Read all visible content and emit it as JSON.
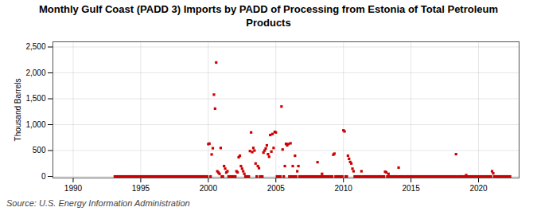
{
  "chart_data": {
    "type": "scatter",
    "title": "Monthly Gulf Coast (PADD 3) Imports by PADD of Processing from Estonia of Total Petroleum\nProducts",
    "ylabel": "Thousand Barrels",
    "caption": "Source: U.S. Energy Information Administration",
    "color": "#cc0000",
    "marker": "square",
    "grid": true,
    "xlim": [
      1988.5,
      2023.0
    ],
    "xticks": [
      1990,
      1995,
      2000,
      2005,
      2010,
      2015,
      2020
    ],
    "ylim": [
      -30,
      2600
    ],
    "yticks": [
      0,
      500,
      {
        "value": 1000,
        "label": "1,000"
      },
      {
        "value": 1500,
        "label": "1,500"
      },
      {
        "value": 2000,
        "label": "2,000"
      },
      {
        "value": 2500,
        "label": "2,500"
      }
    ],
    "x": [
      1993.083,
      1993.167,
      1993.25,
      1993.333,
      1993.417,
      1993.5,
      1993.583,
      1993.667,
      1993.75,
      1993.833,
      1993.917,
      1994.0,
      1994.083,
      1994.167,
      1994.25,
      1994.333,
      1994.417,
      1994.5,
      1994.583,
      1994.667,
      1994.75,
      1994.833,
      1994.917,
      1995.0,
      1995.083,
      1995.167,
      1995.25,
      1995.333,
      1995.417,
      1995.5,
      1995.583,
      1995.667,
      1995.75,
      1995.833,
      1995.917,
      1996.0,
      1996.083,
      1996.167,
      1996.25,
      1996.333,
      1996.417,
      1996.5,
      1996.583,
      1996.667,
      1996.75,
      1996.833,
      1996.917,
      1997.0,
      1997.083,
      1997.167,
      1997.25,
      1997.333,
      1997.417,
      1997.5,
      1997.583,
      1997.667,
      1997.75,
      1997.833,
      1997.917,
      1998.0,
      1998.083,
      1998.167,
      1998.25,
      1998.333,
      1998.417,
      1998.5,
      1998.583,
      1998.667,
      1998.75,
      1998.833,
      1998.917,
      1999.0,
      1999.083,
      1999.167,
      1999.25,
      1999.333,
      1999.417,
      1999.5,
      1999.583,
      1999.667,
      1999.75,
      1999.833,
      1999.917,
      2000.0,
      2000.083,
      2000.167,
      2000.25,
      2000.333,
      2000.417,
      2000.5,
      2000.583,
      2000.667,
      2000.75,
      2000.833,
      2000.917,
      2001.0,
      2001.083,
      2001.167,
      2001.25,
      2001.333,
      2001.417,
      2001.5,
      2001.583,
      2001.667,
      2001.75,
      2001.833,
      2001.917,
      2002.0,
      2002.083,
      2002.167,
      2002.25,
      2002.333,
      2002.417,
      2002.5,
      2002.583,
      2002.667,
      2002.75,
      2002.833,
      2002.917,
      2003.0,
      2003.083,
      2003.167,
      2003.25,
      2003.333,
      2003.417,
      2003.5,
      2003.583,
      2003.667,
      2003.75,
      2003.833,
      2003.917,
      2004.0,
      2004.083,
      2004.167,
      2004.25,
      2004.333,
      2004.417,
      2004.5,
      2004.583,
      2004.667,
      2004.75,
      2004.833,
      2004.917,
      2005.0,
      2005.083,
      2005.167,
      2005.25,
      2005.333,
      2005.417,
      2005.5,
      2005.583,
      2005.667,
      2005.75,
      2005.833,
      2005.917,
      2006.0,
      2006.083,
      2006.167,
      2006.25,
      2006.333,
      2006.417,
      2006.5,
      2006.583,
      2006.667,
      2006.75,
      2006.833,
      2006.917,
      2007.0,
      2007.083,
      2007.167,
      2007.25,
      2007.333,
      2007.417,
      2007.5,
      2007.583,
      2007.667,
      2007.75,
      2007.833,
      2007.917,
      2008.0,
      2008.083,
      2008.167,
      2008.25,
      2008.333,
      2008.417,
      2008.5,
      2008.583,
      2008.667,
      2008.75,
      2008.833,
      2008.917,
      2009.0,
      2009.083,
      2009.167,
      2009.25,
      2009.333,
      2009.417,
      2009.5,
      2009.583,
      2009.667,
      2009.75,
      2009.833,
      2009.917,
      2010.0,
      2010.083,
      2010.167,
      2010.25,
      2010.333,
      2010.417,
      2010.5,
      2010.583,
      2010.667,
      2010.75,
      2010.833,
      2010.917,
      2011.0,
      2011.083,
      2011.167,
      2011.25,
      2011.333,
      2011.417,
      2011.5,
      2011.583,
      2011.667,
      2011.75,
      2011.833,
      2011.917,
      2012.0,
      2012.083,
      2012.167,
      2012.25,
      2012.333,
      2012.417,
      2012.5,
      2012.583,
      2012.667,
      2012.75,
      2012.833,
      2012.917,
      2013.0,
      2013.083,
      2013.167,
      2013.25,
      2013.333,
      2013.417,
      2013.5,
      2013.583,
      2013.667,
      2013.75,
      2013.833,
      2013.917,
      2014.0,
      2014.083,
      2014.167,
      2014.25,
      2014.333,
      2014.417,
      2014.5,
      2014.583,
      2014.667,
      2014.75,
      2014.833,
      2014.917,
      2015.0,
      2015.083,
      2015.167,
      2015.25,
      2015.333,
      2015.417,
      2015.5,
      2015.583,
      2015.667,
      2015.75,
      2015.833,
      2015.917,
      2016.0,
      2016.083,
      2016.167,
      2016.25,
      2016.333,
      2016.417,
      2016.5,
      2016.583,
      2016.667,
      2016.75,
      2016.833,
      2016.917,
      2017.0,
      2017.083,
      2017.167,
      2017.25,
      2017.333,
      2017.417,
      2017.5,
      2017.583,
      2017.667,
      2017.75,
      2017.833,
      2017.917,
      2018.0,
      2018.083,
      2018.167,
      2018.25,
      2018.333,
      2018.417,
      2018.5,
      2018.583,
      2018.667,
      2018.75,
      2018.833,
      2018.917,
      2019.0,
      2019.083,
      2019.167,
      2019.25,
      2019.333,
      2019.417,
      2019.5,
      2019.583,
      2019.667,
      2019.75,
      2019.833,
      2019.917,
      2020.0,
      2020.083,
      2020.167,
      2020.25,
      2020.333,
      2020.417,
      2020.5,
      2020.583,
      2020.667,
      2020.75,
      2020.833,
      2020.917,
      2021.0,
      2021.083,
      2021.167,
      2021.25,
      2021.333,
      2021.417,
      2021.5,
      2021.583,
      2021.667,
      2021.75,
      2021.833,
      2021.917,
      2022.0,
      2022.083,
      2022.167,
      2022.25,
      2022.333
    ],
    "values": [
      0,
      0,
      0,
      0,
      0,
      0,
      0,
      0,
      0,
      0,
      0,
      0,
      0,
      0,
      0,
      0,
      0,
      0,
      0,
      0,
      0,
      0,
      0,
      0,
      0,
      0,
      0,
      0,
      0,
      0,
      0,
      0,
      0,
      0,
      0,
      0,
      0,
      0,
      0,
      0,
      0,
      0,
      0,
      0,
      0,
      0,
      0,
      0,
      0,
      0,
      0,
      0,
      0,
      0,
      0,
      0,
      0,
      0,
      0,
      0,
      0,
      0,
      0,
      0,
      0,
      0,
      0,
      0,
      0,
      0,
      0,
      0,
      0,
      0,
      0,
      0,
      0,
      0,
      0,
      0,
      0,
      0,
      0,
      625,
      634,
      0,
      425,
      545,
      1580,
      1310,
      2200,
      100,
      75,
      50,
      550,
      0,
      0,
      200,
      150,
      75,
      100,
      0,
      0,
      0,
      0,
      0,
      0,
      0,
      100,
      80,
      370,
      400,
      200,
      150,
      100,
      50,
      0,
      0,
      0,
      0,
      490,
      850,
      470,
      550,
      500,
      250,
      0,
      200,
      160,
      0,
      0,
      0,
      460,
      500,
      540,
      600,
      430,
      380,
      800,
      480,
      820,
      550,
      860,
      850,
      0,
      0,
      0,
      0,
      1350,
      520,
      0,
      200,
      630,
      600,
      625,
      0,
      640,
      0,
      200,
      0,
      400,
      0,
      100,
      200,
      0,
      0,
      0,
      0,
      0,
      0,
      0,
      0,
      0,
      0,
      0,
      0,
      0,
      0,
      0,
      0,
      275,
      0,
      0,
      0,
      50,
      0,
      0,
      0,
      0,
      0,
      0,
      0,
      0,
      0,
      420,
      440,
      0,
      0,
      0,
      0,
      0,
      0,
      0,
      890,
      870,
      0,
      0,
      400,
      340,
      280,
      250,
      150,
      100,
      0,
      0,
      0,
      0,
      0,
      0,
      100,
      0,
      0,
      0,
      0,
      0,
      0,
      0,
      0,
      0,
      0,
      0,
      0,
      0,
      0,
      0,
      0,
      0,
      0,
      0,
      0,
      90,
      80,
      0,
      50,
      0,
      0,
      0,
      0,
      0,
      0,
      0,
      0,
      170,
      0,
      0,
      0,
      0,
      0,
      0,
      0,
      0,
      0,
      0,
      0,
      0,
      0,
      0,
      0,
      0,
      0,
      0,
      0,
      0,
      0,
      0,
      0,
      0,
      0,
      0,
      0,
      0,
      0,
      0,
      0,
      0,
      0,
      0,
      0,
      0,
      0,
      0,
      0,
      0,
      0,
      0,
      0,
      0,
      0,
      0,
      0,
      0,
      0,
      0,
      430,
      0,
      0,
      0,
      0,
      0,
      0,
      0,
      0,
      25,
      0,
      0,
      0,
      0,
      0,
      0,
      0,
      0,
      0,
      0,
      0,
      0,
      0,
      0,
      0,
      0,
      0,
      0,
      0,
      0,
      0,
      0,
      100,
      60,
      0,
      0,
      0,
      0,
      0,
      0,
      0,
      0,
      0,
      0,
      0,
      0,
      0,
      0,
      0
    ]
  }
}
